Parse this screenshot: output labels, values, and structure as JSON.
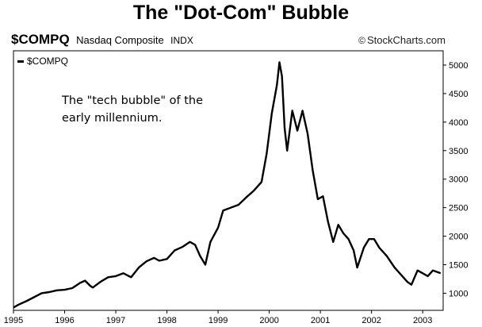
{
  "chart_data": {
    "type": "line",
    "title": "The \"Dot-Com\" Bubble",
    "symbol": "$COMPQ",
    "name": "Nasdaq Composite",
    "exchange": "INDX",
    "source": "StockCharts.com",
    "annotation": [
      "The \"tech bubble\" of the",
      "early millennium."
    ],
    "legend": [
      "$COMPQ"
    ],
    "legend_position": "top-left",
    "grid": false,
    "y_axis_side": "right",
    "xlabel": "",
    "ylabel": "",
    "x_ticks": [
      "1995",
      "1996",
      "1997",
      "1998",
      "1999",
      "2000",
      "2001",
      "2002",
      "2003"
    ],
    "y_ticks": [
      1000,
      1500,
      2000,
      2500,
      3000,
      3500,
      4000,
      4500,
      5000
    ],
    "xlim": [
      1995.0,
      2003.4
    ],
    "ylim": [
      700,
      5250
    ],
    "series": [
      {
        "x": [
          1995.0,
          1995.1,
          1995.25,
          1995.4,
          1995.55,
          1995.7,
          1995.85,
          1996.0,
          1996.15,
          1996.3,
          1996.4,
          1996.5,
          1996.55,
          1996.7,
          1996.85,
          1997.0,
          1997.15,
          1997.3,
          1997.45,
          1997.6,
          1997.75,
          1997.85,
          1998.0,
          1998.15,
          1998.3,
          1998.45,
          1998.55,
          1998.65,
          1998.75,
          1998.85,
          1999.0,
          1999.1,
          1999.25,
          1999.4,
          1999.55,
          1999.7,
          1999.85,
          1999.95,
          2000.05,
          2000.15,
          2000.2,
          2000.25,
          2000.3,
          2000.35,
          2000.45,
          2000.55,
          2000.65,
          2000.75,
          2000.85,
          2000.95,
          2001.05,
          2001.15,
          2001.25,
          2001.35,
          2001.45,
          2001.55,
          2001.65,
          2001.72,
          2001.85,
          2001.95,
          2002.05,
          2002.15,
          2002.3,
          2002.45,
          2002.55,
          2002.7,
          2002.78,
          2002.9,
          2003.0,
          2003.1,
          2003.2,
          2003.35
        ],
        "values": [
          750,
          800,
          860,
          930,
          1000,
          1020,
          1050,
          1060,
          1090,
          1180,
          1220,
          1130,
          1100,
          1200,
          1280,
          1300,
          1350,
          1280,
          1450,
          1560,
          1620,
          1570,
          1600,
          1750,
          1810,
          1900,
          1850,
          1650,
          1500,
          1900,
          2150,
          2450,
          2500,
          2550,
          2680,
          2800,
          2950,
          3450,
          4150,
          4650,
          5050,
          4800,
          3900,
          3500,
          4200,
          3850,
          4200,
          3800,
          3150,
          2650,
          2700,
          2250,
          1900,
          2200,
          2050,
          1950,
          1750,
          1450,
          1800,
          1950,
          1950,
          1800,
          1650,
          1450,
          1350,
          1200,
          1150,
          1400,
          1350,
          1300,
          1400,
          1350
        ]
      }
    ]
  }
}
